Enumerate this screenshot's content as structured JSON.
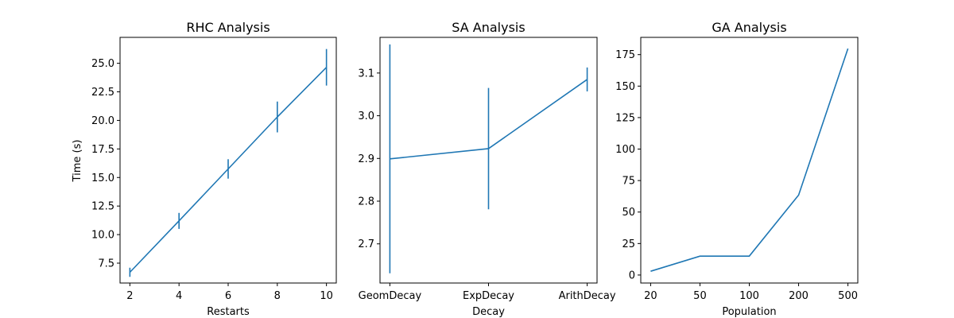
{
  "chart_data": [
    {
      "type": "line",
      "title": "RHC Analysis",
      "xlabel": "Restarts",
      "ylabel": "Time (s)",
      "x": [
        2,
        4,
        6,
        8,
        10
      ],
      "x_tick_labels": [
        "2",
        "4",
        "6",
        "8",
        "10"
      ],
      "y_ticks": [
        7.5,
        10.0,
        12.5,
        15.0,
        17.5,
        20.0,
        22.5,
        25.0
      ],
      "y_tick_labels": [
        "7.5",
        "10.0",
        "12.5",
        "15.0",
        "17.5",
        "20.0",
        "22.5",
        "25.0"
      ],
      "xlim": [
        1.6,
        10.4
      ],
      "ylim": [
        5.76,
        27.27
      ],
      "series": [
        {
          "values": [
            6.7,
            11.2,
            15.75,
            20.3,
            24.65
          ],
          "error": [
            0.4,
            0.7,
            0.85,
            1.35,
            1.6
          ],
          "color": "#1f77b4"
        }
      ],
      "grid": false
    },
    {
      "type": "line",
      "title": "SA Analysis",
      "xlabel": "Decay",
      "ylabel": "",
      "categories": [
        "GeomDecay",
        "ExpDecay",
        "ArithDecay"
      ],
      "x": [
        0,
        1,
        2
      ],
      "y_ticks": [
        2.7,
        2.8,
        2.9,
        3.0,
        3.1
      ],
      "y_tick_labels": [
        "2.7",
        "2.8",
        "2.9",
        "3.0",
        "3.1"
      ],
      "xlim": [
        -0.1,
        2.1
      ],
      "ylim": [
        2.6083,
        3.1835
      ],
      "series": [
        {
          "values": [
            2.899,
            2.923,
            3.085
          ],
          "error": [
            0.268,
            0.142,
            0.028
          ],
          "color": "#1f77b4"
        }
      ],
      "grid": false
    },
    {
      "type": "line",
      "title": "GA Analysis",
      "xlabel": "Population",
      "ylabel": "",
      "categories": [
        "20",
        "50",
        "100",
        "200",
        "500"
      ],
      "x": [
        0,
        1,
        2,
        3,
        4
      ],
      "y_ticks": [
        0,
        25,
        50,
        75,
        100,
        125,
        150,
        175
      ],
      "y_tick_labels": [
        "0",
        "25",
        "50",
        "75",
        "100",
        "125",
        "150",
        "175"
      ],
      "xlim": [
        -0.2,
        4.2
      ],
      "ylim": [
        -6.35,
        188.7
      ],
      "series": [
        {
          "values": [
            3.0,
            15.0,
            15.0,
            63.5,
            179.8
          ],
          "color": "#1f77b4"
        }
      ],
      "grid": false
    }
  ]
}
